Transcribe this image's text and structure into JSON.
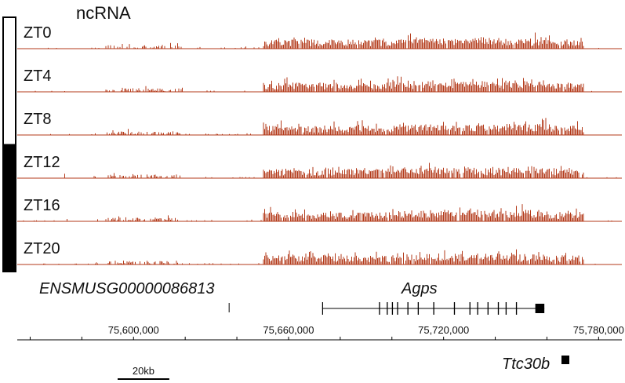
{
  "title": "ncRNA",
  "tracks": [
    {
      "label": "ZT0",
      "phase": "light",
      "seed": 11
    },
    {
      "label": "ZT4",
      "phase": "light",
      "seed": 23
    },
    {
      "label": "ZT8",
      "phase": "light",
      "seed": 37
    },
    {
      "label": "ZT12",
      "phase": "dark",
      "seed": 41
    },
    {
      "label": "ZT16",
      "phase": "dark",
      "seed": 53
    },
    {
      "label": "ZT20",
      "phase": "dark",
      "seed": 67
    }
  ],
  "colors": {
    "signal": "#b33a1a",
    "light_phase": "#ffffff",
    "dark_phase": "#000000",
    "gene": "#000000"
  },
  "genes": [
    {
      "name": "ENSMUSG00000086813",
      "start": 75637000,
      "end": 75637300,
      "strand": "none",
      "exons": [
        [
          75637000,
          75637300
        ]
      ]
    },
    {
      "name": "Agps",
      "start": 75673000,
      "end": 75759000,
      "strand": "+",
      "exons": [
        [
          75673000,
          75673300
        ],
        [
          75695000,
          75695400
        ],
        [
          75698000,
          75698400
        ],
        [
          75700000,
          75700400
        ],
        [
          75702000,
          75702400
        ],
        [
          75706000,
          75706400
        ],
        [
          75710000,
          75710400
        ],
        [
          75716000,
          75716400
        ],
        [
          75724000,
          75724400
        ],
        [
          75730000,
          75730400
        ],
        [
          75733000,
          75733400
        ],
        [
          75737000,
          75737400
        ],
        [
          75741000,
          75741400
        ],
        [
          75744000,
          75744400
        ],
        [
          75748000,
          75748400
        ],
        [
          75755500,
          75759000
        ]
      ]
    },
    {
      "name": "Ttc30b",
      "start": 75780000,
      "end": 75782000,
      "strand": "none",
      "exons": [
        [
          75780000,
          75782000
        ]
      ]
    }
  ],
  "axis": {
    "start": 75555000,
    "end": 75789000,
    "ticks": [
      {
        "value": 75600000,
        "label": "75,600,000"
      },
      {
        "value": 75660000,
        "label": "75,660,000"
      },
      {
        "value": 75720000,
        "label": "75,720,000"
      },
      {
        "value": 75780000,
        "label": "75,780,000"
      }
    ]
  },
  "scale_bar": {
    "label": "20kb",
    "length_bp": 20000
  }
}
